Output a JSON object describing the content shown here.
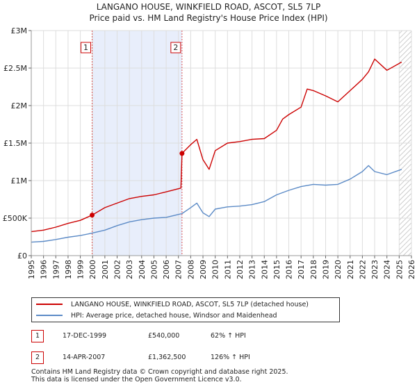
{
  "chart_data": {
    "type": "line",
    "title": "LANGANO HOUSE, WINKFIELD ROAD, ASCOT, SL5 7LP",
    "subtitle": "Price paid vs. HM Land Registry's House Price Index (HPI)",
    "xlabel": "",
    "ylabel": "",
    "xlim": [
      1995,
      2026
    ],
    "ylim": [
      0,
      3000000
    ],
    "x_ticks": [
      1995,
      1996,
      1997,
      1998,
      1999,
      2000,
      2001,
      2002,
      2003,
      2004,
      2005,
      2006,
      2007,
      2008,
      2009,
      2010,
      2011,
      2012,
      2013,
      2014,
      2015,
      2016,
      2017,
      2018,
      2019,
      2020,
      2021,
      2022,
      2023,
      2024,
      2025,
      2026
    ],
    "y_ticks": [
      {
        "value": 0,
        "label": "£0"
      },
      {
        "value": 500000,
        "label": "£500K"
      },
      {
        "value": 1000000,
        "label": "£1M"
      },
      {
        "value": 1500000,
        "label": "£1.5M"
      },
      {
        "value": 2000000,
        "label": "£2M"
      },
      {
        "value": 2500000,
        "label": "£2.5M"
      },
      {
        "value": 3000000,
        "label": "£3M"
      }
    ],
    "grid": true,
    "shaded_period": [
      1999.96,
      2007.29
    ],
    "hatched_future_from": 2025.0,
    "series": [
      {
        "name": "LANGANO HOUSE, WINKFIELD ROAD, ASCOT, SL5 7LP (detached house)",
        "color": "#cc0000",
        "x": [
          1995,
          1996,
          1997,
          1998,
          1999,
          1999.96,
          2001,
          2002,
          2003,
          2004,
          2005,
          2006,
          2007.2,
          2007.29,
          2008,
          2008.5,
          2009,
          2009.5,
          2010,
          2011,
          2012,
          2013,
          2014,
          2015,
          2015.5,
          2016,
          2017,
          2017.5,
          2018,
          2019,
          2020,
          2021,
          2022,
          2022.5,
          2023,
          2024,
          2025.2
        ],
        "y": [
          320000,
          340000,
          380000,
          430000,
          470000,
          540000,
          640000,
          700000,
          760000,
          790000,
          810000,
          850000,
          900000,
          1362500,
          1480000,
          1550000,
          1280000,
          1150000,
          1400000,
          1500000,
          1520000,
          1550000,
          1560000,
          1670000,
          1820000,
          1880000,
          1980000,
          2220000,
          2200000,
          2130000,
          2050000,
          2200000,
          2350000,
          2450000,
          2620000,
          2470000,
          2580000
        ]
      },
      {
        "name": "HPI: Average price, detached house, Windsor and Maidenhead",
        "color": "#5b8ac6",
        "x": [
          1995,
          1996,
          1997,
          1998,
          1999,
          1999.96,
          2001,
          2002,
          2003,
          2004,
          2005,
          2006,
          2007.29,
          2008,
          2008.5,
          2009,
          2009.5,
          2010,
          2011,
          2012,
          2013,
          2014,
          2015,
          2016,
          2017,
          2018,
          2019,
          2020,
          2021,
          2022,
          2022.5,
          2023,
          2024,
          2025.2
        ],
        "y": [
          180000,
          190000,
          215000,
          245000,
          268000,
          300000,
          340000,
          400000,
          450000,
          480000,
          500000,
          510000,
          560000,
          640000,
          700000,
          570000,
          520000,
          620000,
          650000,
          660000,
          680000,
          720000,
          810000,
          870000,
          920000,
          950000,
          940000,
          950000,
          1020000,
          1120000,
          1200000,
          1120000,
          1080000,
          1150000
        ]
      }
    ],
    "transactions": [
      {
        "marker": "1",
        "x": 1999.96,
        "price": 540000
      },
      {
        "marker": "2",
        "x": 2007.29,
        "price": 1362500
      }
    ]
  },
  "legend": {
    "property_label": "LANGANO HOUSE, WINKFIELD ROAD, ASCOT, SL5 7LP (detached house)",
    "hpi_label": "HPI: Average price, detached house, Windsor and Maidenhead"
  },
  "transactions_table": [
    {
      "marker": "1",
      "date": "17-DEC-1999",
      "price": "£540,000",
      "hpi": "62% ↑ HPI"
    },
    {
      "marker": "2",
      "date": "14-APR-2007",
      "price": "£1,362,500",
      "hpi": "126% ↑ HPI"
    }
  ],
  "footer": {
    "line1": "Contains HM Land Registry data © Crown copyright and database right 2025.",
    "line2": "This data is licensed under the Open Government Licence v3.0."
  },
  "colors": {
    "property": "#cc0000",
    "hpi": "#5b8ac6",
    "shade": "#e8eefb",
    "grid": "#dddddd"
  }
}
